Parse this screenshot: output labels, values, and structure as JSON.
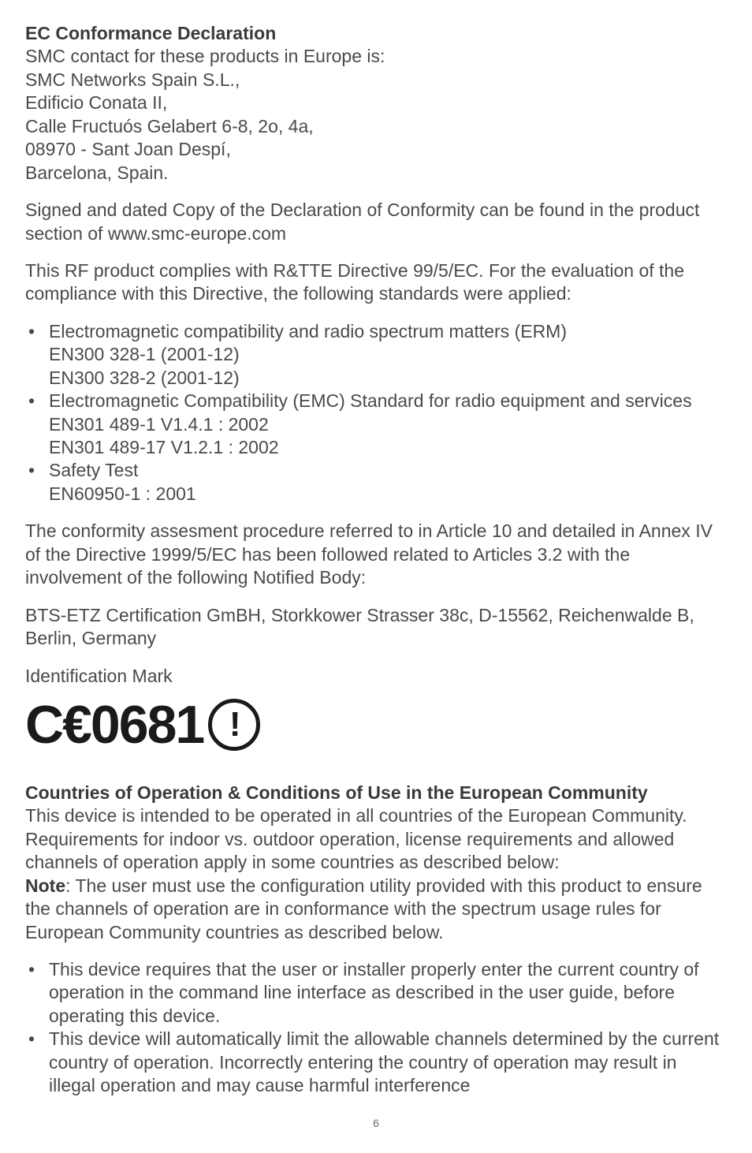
{
  "section1": {
    "heading": "EC Conformance Declaration",
    "lines": [
      "SMC contact for these products in Europe is:",
      "SMC Networks Spain S.L.,",
      "Edificio Conata II,",
      "Calle Fructuós Gelabert 6-8, 2o, 4a,",
      "08970 - Sant Joan Despí,",
      "Barcelona, Spain."
    ]
  },
  "para2": "Signed and dated Copy of the Declaration of Conformity can be found in the product section of www.smc-europe.com",
  "para3": "This RF product complies with R&TTE Directive 99/5/EC. For the evaluation of the compliance with this Directive, the following standards were applied:",
  "bullets1": [
    {
      "main": "Electromagnetic compatibility and radio spectrum matters (ERM)",
      "subs": [
        "EN300 328-1 (2001-12)",
        "EN300 328-2 (2001-12)"
      ]
    },
    {
      "main": "Electromagnetic Compatibility (EMC) Standard for radio equipment and services",
      "subs": [
        "EN301 489-1 V1.4.1 : 2002",
        "EN301 489-17 V1.2.1 : 2002"
      ]
    },
    {
      "main": "Safety Test",
      "subs": [
        "EN60950-1 : 2001"
      ]
    }
  ],
  "para4": "The conformity assesment procedure referred to in Article 10 and detailed in Annex IV of the Directive 1999/5/EC has been followed related to Articles 3.2 with the involvement of the following Notified Body:",
  "para5": "BTS-ETZ Certification GmBH, Storkkower Strasser 38c, D-15562, Reichenwalde B, Berlin, Germany",
  "para6": "Identification Mark",
  "ce_text": "C€0681",
  "section2": {
    "heading": "Countries of Operation & Conditions of Use in the European Community",
    "body1": "This device is intended to be operated in all countries of the European Community. Requirements for indoor vs. outdoor operation, license requirements and allowed channels of operation apply in some countries as described below:",
    "note_label": "Note",
    "note_body": ": The user must use the configuration utility provided with this product to ensure the channels of operation are in conformance with the spectrum usage rules for European Community countries as described below."
  },
  "bullets2": [
    "This device requires that the user or installer properly enter the current country of operation in the command line interface as described in the user guide, before operating this device.",
    "This device will automatically limit the allowable channels determined by the current country of operation. Incorrectly entering the country of operation may result in illegal operation and may cause harmful interference"
  ],
  "page_number": "6"
}
